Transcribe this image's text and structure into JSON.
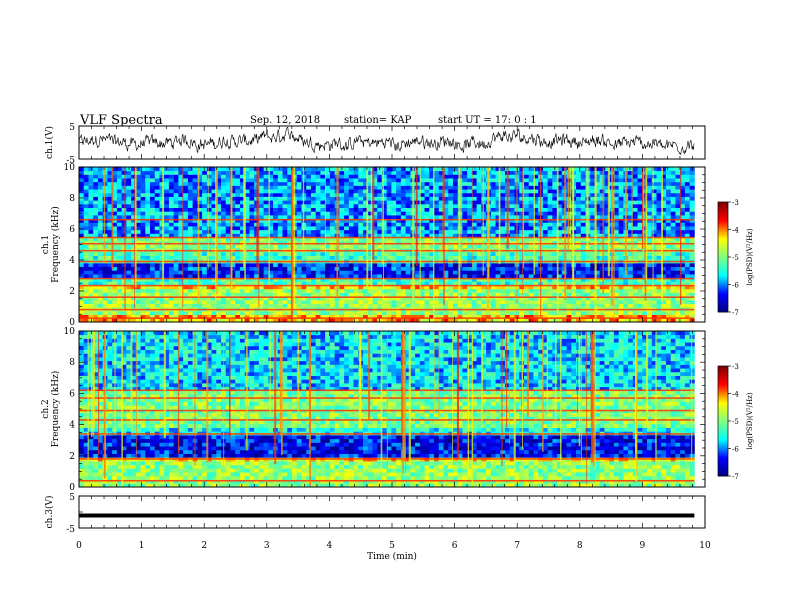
{
  "header": {
    "title": "VLF Spectra",
    "date": "Sep. 12, 2018",
    "station": "station= KAP",
    "start": "start  UT  =   17: 0  : 1"
  },
  "chart_data": [
    {
      "type": "line",
      "id": "ch1-waveform",
      "ylabel": "ch.1(V)",
      "ylim": [
        -5,
        5
      ],
      "yticks": [
        "5",
        "-5"
      ],
      "xlim": [
        0,
        9.83
      ],
      "series": [
        {
          "kind": "noise",
          "amplitude_V": 3.0
        }
      ]
    },
    {
      "type": "heatmap",
      "id": "ch1-spectrogram",
      "ylabel_top": "ch.1",
      "ylabel": "Frequency  (kHz)",
      "ylim": [
        0,
        10
      ],
      "yticks": [
        "0",
        "2",
        "4",
        "6",
        "8",
        "10"
      ],
      "colorbar": {
        "label": "log(PSD)(V²/Hz)",
        "range": [
          -7,
          -3
        ],
        "ticks": [
          "-3",
          "-4",
          "-5",
          "-6",
          "-7"
        ]
      },
      "colormap": [
        "#00007f",
        "#0000ff",
        "#00ffff",
        "#7fff7f",
        "#ffff00",
        "#ff0000",
        "#7f0000"
      ],
      "bands_kHz": [
        {
          "from": 0,
          "to": 0.5,
          "level": -4.2
        },
        {
          "from": 0.5,
          "to": 2.2,
          "level": -4.9
        },
        {
          "from": 2.2,
          "to": 2.5,
          "level": -4.3
        },
        {
          "from": 2.5,
          "to": 2.9,
          "level": -5.3
        },
        {
          "from": 2.9,
          "to": 3.9,
          "level": -6.3
        },
        {
          "from": 3.9,
          "to": 4.6,
          "level": -5.3
        },
        {
          "from": 4.6,
          "to": 5.5,
          "level": -5.0
        },
        {
          "from": 5.5,
          "to": 10,
          "level": -5.9
        }
      ],
      "lines_kHz": [
        0.25,
        0.8,
        1.6,
        2.35,
        2.8,
        3.9,
        4.6,
        5.05,
        5.45,
        6.6
      ]
    },
    {
      "type": "heatmap",
      "id": "ch2-spectrogram",
      "ylabel_top": "ch.2",
      "ylabel": "Frequency  (kHz)",
      "ylim": [
        0,
        10
      ],
      "yticks": [
        "0",
        "2",
        "4",
        "6",
        "8",
        "10"
      ],
      "colorbar": {
        "label": "log(PSD)(V²/Hz)",
        "range": [
          -7,
          -3
        ],
        "ticks": [
          "-3",
          "-4",
          "-5",
          "-6",
          "-7"
        ]
      },
      "colormap": [
        "#00007f",
        "#0000ff",
        "#00ffff",
        "#7fff7f",
        "#ffff00",
        "#ff0000",
        "#7f0000"
      ],
      "bands_kHz": [
        {
          "from": 0,
          "to": 1.7,
          "level": -4.9
        },
        {
          "from": 1.7,
          "to": 2.0,
          "level": -4.4
        },
        {
          "from": 2.0,
          "to": 3.3,
          "level": -6.4
        },
        {
          "from": 3.3,
          "to": 3.9,
          "level": -5.6
        },
        {
          "from": 3.9,
          "to": 6.2,
          "level": -5.0
        },
        {
          "from": 6.2,
          "to": 10,
          "level": -5.7
        }
      ],
      "lines_kHz": [
        0.4,
        1.8,
        3.4,
        4.3,
        4.9,
        5.7,
        6.2
      ]
    },
    {
      "type": "line",
      "id": "ch3-waveform",
      "ylabel": "ch.3(V)",
      "ylim": [
        -5,
        5
      ],
      "yticks": [
        "5",
        "-5"
      ],
      "xlim": [
        0,
        9.83
      ],
      "series": [
        {
          "kind": "constant",
          "value_V": -1.1
        }
      ]
    }
  ],
  "xaxis": {
    "label": "Time  (min)",
    "range": [
      0,
      10
    ],
    "ticks": [
      "0",
      "1",
      "2",
      "3",
      "4",
      "5",
      "6",
      "7",
      "8",
      "9",
      "10"
    ]
  }
}
